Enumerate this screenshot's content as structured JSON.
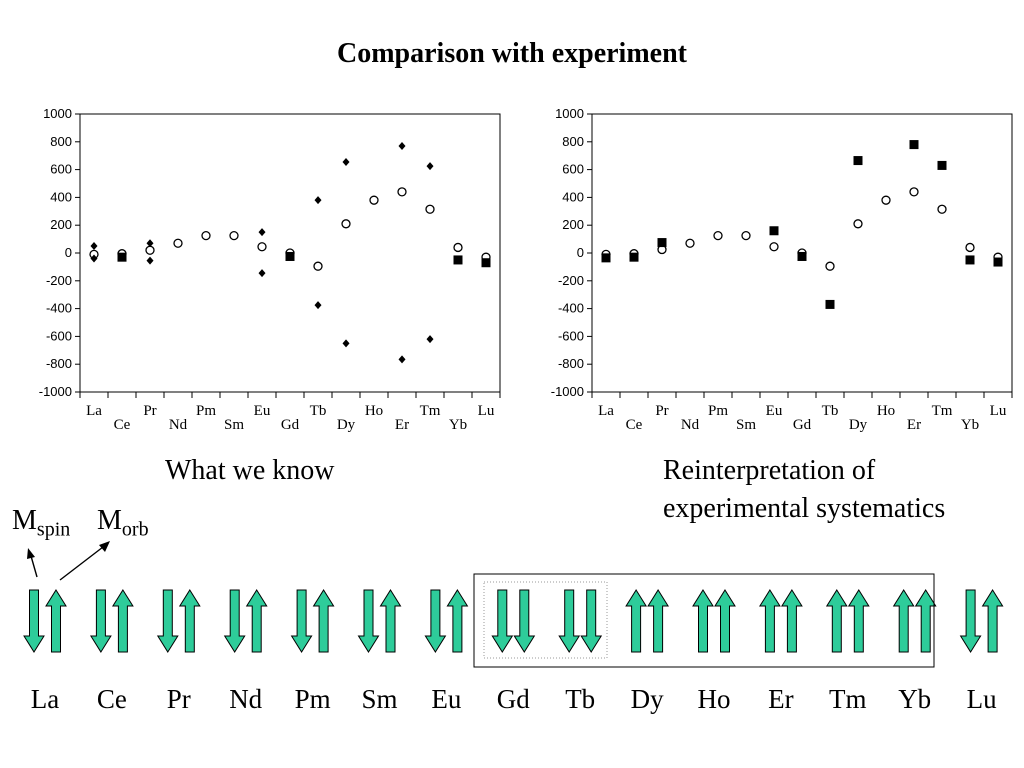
{
  "title": "Comparison with experiment",
  "chart_data": [
    {
      "type": "scatter",
      "caption": "What we know",
      "categories": [
        "La",
        "Ce",
        "Pr",
        "Nd",
        "Pm",
        "Sm",
        "Eu",
        "Gd",
        "Tb",
        "Dy",
        "Ho",
        "Er",
        "Tm",
        "Yb",
        "Lu"
      ],
      "ylim": [
        -1000,
        1000
      ],
      "yticks": [
        1000,
        800,
        600,
        400,
        200,
        0,
        -200,
        -400,
        -600,
        -800,
        -1000
      ],
      "grid": false,
      "series": [
        {
          "marker": "open-circle",
          "values": [
            -10,
            -5,
            20,
            70,
            125,
            125,
            45,
            0,
            -95,
            210,
            380,
            440,
            315,
            40,
            -30
          ]
        },
        {
          "marker": "diamond",
          "values": [
            [
              50,
              -40
            ],
            [],
            [
              70,
              -55
            ],
            [],
            [],
            [],
            [
              150,
              -145
            ],
            [],
            [
              380,
              -375
            ],
            [
              655,
              -650
            ],
            [],
            [
              770,
              -765
            ],
            [
              625,
              -620
            ],
            [],
            []
          ]
        },
        {
          "marker": "square",
          "values": [
            null,
            -30,
            null,
            null,
            null,
            null,
            null,
            -25,
            null,
            null,
            null,
            null,
            null,
            -50,
            -70
          ]
        }
      ]
    },
    {
      "type": "scatter",
      "caption": "Reinterpretation of experimental systematics",
      "categories": [
        "La",
        "Ce",
        "Pr",
        "Nd",
        "Pm",
        "Sm",
        "Eu",
        "Gd",
        "Tb",
        "Dy",
        "Ho",
        "Er",
        "Tm",
        "Yb",
        "Lu"
      ],
      "ylim": [
        -1000,
        1000
      ],
      "yticks": [
        1000,
        800,
        600,
        400,
        200,
        0,
        -200,
        -400,
        -600,
        -800,
        -1000
      ],
      "grid": false,
      "series": [
        {
          "marker": "open-circle",
          "values": [
            -10,
            -5,
            25,
            70,
            125,
            125,
            45,
            0,
            -95,
            210,
            380,
            440,
            315,
            40,
            -30
          ]
        },
        {
          "marker": "square",
          "values": [
            -35,
            -30,
            75,
            null,
            null,
            null,
            160,
            -25,
            -370,
            665,
            null,
            780,
            630,
            -50,
            -65
          ]
        }
      ]
    }
  ],
  "moments": {
    "spin_label": "M",
    "spin_sub": "spin",
    "orb_label": "M",
    "orb_sub": "orb",
    "elements": [
      {
        "name": "La",
        "spin": "down",
        "orb": "up"
      },
      {
        "name": "Ce",
        "spin": "down",
        "orb": "up"
      },
      {
        "name": "Pr",
        "spin": "down",
        "orb": "up"
      },
      {
        "name": "Nd",
        "spin": "down",
        "orb": "up"
      },
      {
        "name": "Pm",
        "spin": "down",
        "orb": "up"
      },
      {
        "name": "Sm",
        "spin": "down",
        "orb": "up"
      },
      {
        "name": "Eu",
        "spin": "down",
        "orb": "up"
      },
      {
        "name": "Gd",
        "spin": "down",
        "orb": "down"
      },
      {
        "name": "Tb",
        "spin": "down",
        "orb": "down"
      },
      {
        "name": "Dy",
        "spin": "up",
        "orb": "up"
      },
      {
        "name": "Ho",
        "spin": "up",
        "orb": "up"
      },
      {
        "name": "Er",
        "spin": "up",
        "orb": "up"
      },
      {
        "name": "Tm",
        "spin": "up",
        "orb": "up"
      },
      {
        "name": "Yb",
        "spin": "up",
        "orb": "up"
      },
      {
        "name": "Lu",
        "spin": "down",
        "orb": "up"
      }
    ],
    "arrow_color": "#2ecc9a"
  }
}
